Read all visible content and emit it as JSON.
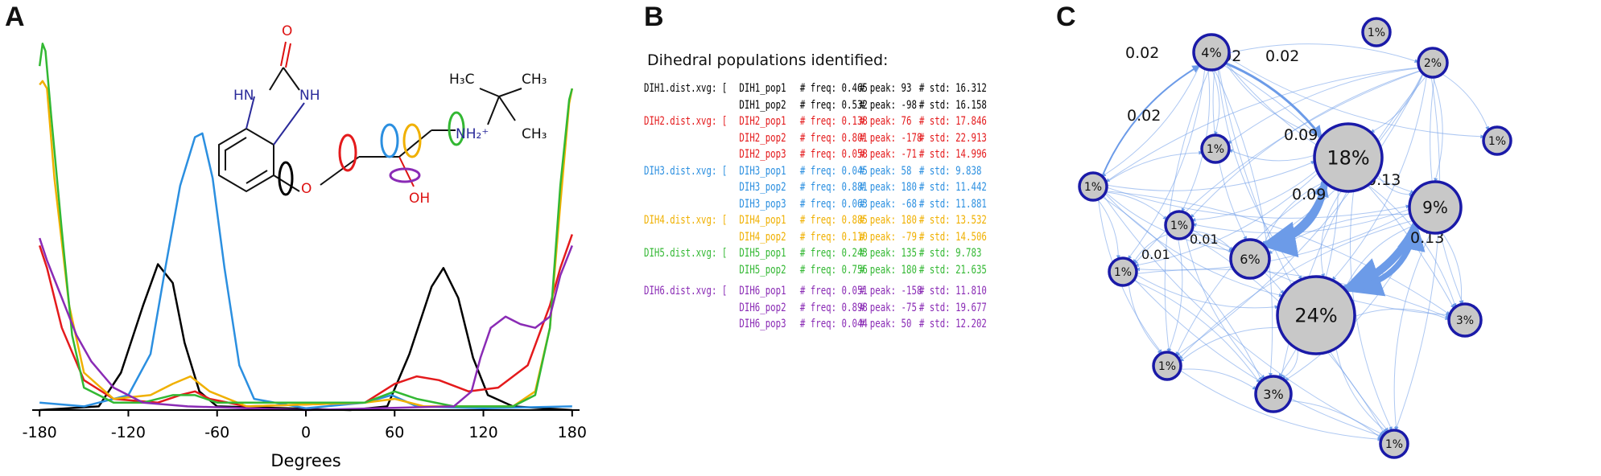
{
  "panels": {
    "a": "A",
    "b": "B",
    "c": "C"
  },
  "panel_a": {
    "chart_data": {
      "type": "line",
      "xlabel": "Degrees",
      "x_ticks": [
        -180,
        -120,
        -60,
        0,
        60,
        120,
        180
      ],
      "xlim": [
        -185,
        185
      ],
      "ylim": [
        0,
        1.0
      ],
      "colors": {
        "DIH1": "#000000",
        "DIH2": "#e41a1c",
        "DIH3": "#2b8fe0",
        "DIH4": "#f0b000",
        "DIH5": "#33b833",
        "DIH6": "#8a2bb5"
      },
      "series": [
        {
          "name": "DIH1",
          "points": [
            [
              -180,
              0
            ],
            [
              -140,
              0.01
            ],
            [
              -125,
              0.1
            ],
            [
              -110,
              0.28
            ],
            [
              -100,
              0.39
            ],
            [
              -90,
              0.34
            ],
            [
              -82,
              0.18
            ],
            [
              -72,
              0.05
            ],
            [
              -60,
              0.01
            ],
            [
              30,
              0
            ],
            [
              55,
              0.01
            ],
            [
              70,
              0.15
            ],
            [
              85,
              0.33
            ],
            [
              93,
              0.38
            ],
            [
              103,
              0.3
            ],
            [
              113,
              0.14
            ],
            [
              123,
              0.04
            ],
            [
              140,
              0.01
            ],
            [
              180,
              0
            ]
          ]
        },
        {
          "name": "DIH2",
          "points": [
            [
              -180,
              0.44
            ],
            [
              -175,
              0.38
            ],
            [
              -165,
              0.22
            ],
            [
              -150,
              0.08
            ],
            [
              -130,
              0.03
            ],
            [
              -100,
              0.02
            ],
            [
              -85,
              0.04
            ],
            [
              -75,
              0.05
            ],
            [
              -65,
              0.03
            ],
            [
              -40,
              0.01
            ],
            [
              40,
              0.02
            ],
            [
              60,
              0.07
            ],
            [
              75,
              0.09
            ],
            [
              90,
              0.08
            ],
            [
              110,
              0.05
            ],
            [
              130,
              0.06
            ],
            [
              150,
              0.12
            ],
            [
              165,
              0.28
            ],
            [
              172,
              0.38
            ],
            [
              180,
              0.47
            ]
          ]
        },
        {
          "name": "DIH3",
          "points": [
            [
              -180,
              0.02
            ],
            [
              -150,
              0.01
            ],
            [
              -120,
              0.04
            ],
            [
              -105,
              0.15
            ],
            [
              -95,
              0.38
            ],
            [
              -85,
              0.6
            ],
            [
              -75,
              0.73
            ],
            [
              -70,
              0.74
            ],
            [
              -63,
              0.62
            ],
            [
              -55,
              0.38
            ],
            [
              -45,
              0.12
            ],
            [
              -35,
              0.03
            ],
            [
              0,
              0.005
            ],
            [
              40,
              0.02
            ],
            [
              58,
              0.04
            ],
            [
              75,
              0.01
            ],
            [
              120,
              0.005
            ],
            [
              180,
              0.01
            ]
          ]
        },
        {
          "name": "DIH4",
          "points": [
            [
              -180,
              0.87
            ],
            [
              -178,
              0.88
            ],
            [
              -175,
              0.86
            ],
            [
              -170,
              0.62
            ],
            [
              -160,
              0.28
            ],
            [
              -150,
              0.1
            ],
            [
              -130,
              0.03
            ],
            [
              -105,
              0.04
            ],
            [
              -90,
              0.07
            ],
            [
              -78,
              0.09
            ],
            [
              -65,
              0.05
            ],
            [
              -40,
              0.01
            ],
            [
              40,
              0.02
            ],
            [
              60,
              0.03
            ],
            [
              80,
              0.01
            ],
            [
              140,
              0.01
            ],
            [
              155,
              0.05
            ],
            [
              165,
              0.22
            ],
            [
              172,
              0.55
            ],
            [
              178,
              0.82
            ],
            [
              180,
              0.86
            ]
          ]
        },
        {
          "name": "DIH5",
          "points": [
            [
              -180,
              0.92
            ],
            [
              -178,
              0.98
            ],
            [
              -176,
              0.96
            ],
            [
              -172,
              0.78
            ],
            [
              -165,
              0.48
            ],
            [
              -158,
              0.2
            ],
            [
              -150,
              0.06
            ],
            [
              -130,
              0.02
            ],
            [
              -110,
              0.02
            ],
            [
              -90,
              0.04
            ],
            [
              -75,
              0.04
            ],
            [
              -60,
              0.02
            ],
            [
              40,
              0.02
            ],
            [
              60,
              0.05
            ],
            [
              75,
              0.03
            ],
            [
              100,
              0.01
            ],
            [
              140,
              0.01
            ],
            [
              155,
              0.04
            ],
            [
              165,
              0.22
            ],
            [
              172,
              0.6
            ],
            [
              178,
              0.83
            ],
            [
              180,
              0.86
            ]
          ]
        },
        {
          "name": "DIH6",
          "points": [
            [
              -180,
              0.46
            ],
            [
              -175,
              0.4
            ],
            [
              -165,
              0.3
            ],
            [
              -155,
              0.2
            ],
            [
              -145,
              0.13
            ],
            [
              -130,
              0.06
            ],
            [
              -110,
              0.02
            ],
            [
              -80,
              0.01
            ],
            [
              0,
              0
            ],
            [
              100,
              0.01
            ],
            [
              112,
              0.05
            ],
            [
              118,
              0.14
            ],
            [
              125,
              0.22
            ],
            [
              135,
              0.25
            ],
            [
              145,
              0.23
            ],
            [
              155,
              0.22
            ],
            [
              165,
              0.25
            ],
            [
              172,
              0.36
            ],
            [
              180,
              0.44
            ]
          ]
        }
      ]
    },
    "molecule": {
      "o_carbonyl": "O",
      "nh_left": "HN",
      "nh_right": "NH",
      "ether_o": "O",
      "hydroxyl": "OH",
      "ch3_left": "H₃C",
      "ch3_right": "CH₃",
      "ch3_bottom": "CH₃",
      "nh2": "NH₂⁺"
    }
  },
  "panel_b": {
    "title": "Dihedral populations identified:",
    "groups": [
      {
        "file": "DIH1.dist.xvg: [",
        "color": "#000000",
        "rows": [
          {
            "pop": "DIH1_pop1",
            "freq": "0.465",
            "peak": "93",
            "std": "16.312"
          },
          {
            "pop": "DIH1_pop2",
            "freq": "0.532",
            "peak": "-98",
            "std": "16.158"
          }
        ]
      },
      {
        "file": "DIH2.dist.xvg: [",
        "color": "#e41a1c",
        "rows": [
          {
            "pop": "DIH2_pop1",
            "freq": "0.138",
            "peak": "76",
            "std": "17.846"
          },
          {
            "pop": "DIH2_pop2",
            "freq": "0.801",
            "peak": "-178",
            "std": "22.913"
          },
          {
            "pop": "DIH2_pop3",
            "freq": "0.058",
            "peak": "-71",
            "std": "14.996"
          }
        ]
      },
      {
        "file": "DIH3.dist.xvg: [",
        "color": "#2b8fe0",
        "rows": [
          {
            "pop": "DIH3_pop1",
            "freq": "0.045",
            "peak": "58",
            "std": "9.838"
          },
          {
            "pop": "DIH3_pop2",
            "freq": "0.881",
            "peak": "180",
            "std": "11.442"
          },
          {
            "pop": "DIH3_pop3",
            "freq": "0.063",
            "peak": "-68",
            "std": "11.881"
          }
        ]
      },
      {
        "file": "DIH4.dist.xvg: [",
        "color": "#f0b000",
        "rows": [
          {
            "pop": "DIH4_pop1",
            "freq": "0.885",
            "peak": "180",
            "std": "13.532"
          },
          {
            "pop": "DIH4_pop2",
            "freq": "0.110",
            "peak": "-79",
            "std": "14.506"
          }
        ]
      },
      {
        "file": "DIH5.dist.xvg: [",
        "color": "#33b833",
        "rows": [
          {
            "pop": "DIH5_pop1",
            "freq": "0.243",
            "peak": "135",
            "std": "9.783"
          },
          {
            "pop": "DIH5_pop2",
            "freq": "0.756",
            "peak": "180",
            "std": "21.635"
          }
        ]
      },
      {
        "file": "DIH6.dist.xvg: [",
        "color": "#8a2bb5",
        "rows": [
          {
            "pop": "DIH6_pop1",
            "freq": "0.051",
            "peak": "-158",
            "std": "11.810"
          },
          {
            "pop": "DIH6_pop2",
            "freq": "0.898",
            "peak": "-75",
            "std": "19.677"
          },
          {
            "pop": "DIH6_pop3",
            "freq": "0.044",
            "peak": "50",
            "std": "12.202"
          }
        ]
      }
    ],
    "labels": {
      "freq": "# freq:",
      "peak": "# peak:",
      "std": "# std:"
    }
  },
  "panel_c": {
    "nodes": [
      {
        "id": "n1",
        "label": "1%"
      },
      {
        "id": "n2",
        "label": "4%"
      },
      {
        "id": "n3",
        "label": "2%"
      },
      {
        "id": "n4",
        "label": "1%"
      },
      {
        "id": "n5",
        "label": "1%"
      },
      {
        "id": "n6",
        "label": "18%"
      },
      {
        "id": "n7",
        "label": "1%"
      },
      {
        "id": "n8",
        "label": "9%"
      },
      {
        "id": "n9",
        "label": "1%"
      },
      {
        "id": "n10",
        "label": "6%"
      },
      {
        "id": "n11",
        "label": "1%"
      },
      {
        "id": "n12",
        "label": "24%"
      },
      {
        "id": "n13",
        "label": "3%"
      },
      {
        "id": "n14",
        "label": "1%"
      },
      {
        "id": "n15",
        "label": "3%"
      },
      {
        "id": "n16",
        "label": "1%"
      }
    ],
    "edge_labels": [
      "0.02",
      "0.02",
      "0.02",
      "0.02",
      "0.09",
      "0.09",
      "0.13",
      "0.13",
      "0.01",
      "0.01"
    ],
    "colors": {
      "node_fill": "#c8c8c8",
      "node_stroke": "#1a1aa8",
      "edge": "#6c9be8"
    }
  }
}
